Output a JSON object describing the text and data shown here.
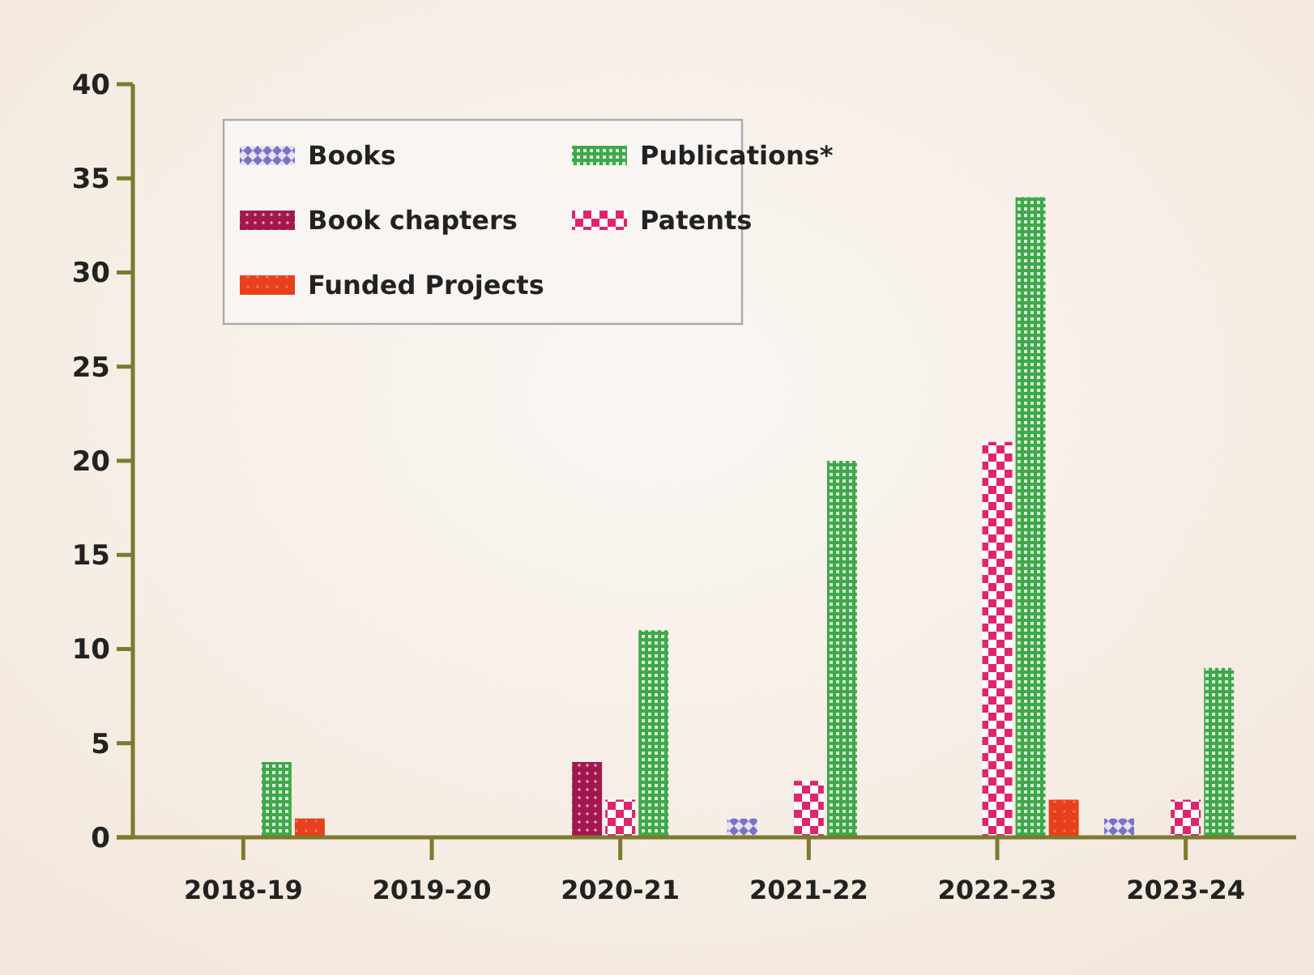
{
  "chart_data": {
    "type": "bar",
    "categories": [
      "2018-19",
      "2019-20",
      "2020-21",
      "2021-22",
      "2022-23",
      "2023-24"
    ],
    "series": [
      {
        "name": "Books",
        "color": "#7b72c4",
        "values": [
          0,
          0,
          0,
          1,
          0,
          1
        ]
      },
      {
        "name": "Book chapters",
        "color": "#a3174f",
        "values": [
          0,
          0,
          4,
          0,
          0,
          0
        ]
      },
      {
        "name": "Patents",
        "color": "#e0246e",
        "values": [
          0,
          0,
          2,
          3,
          21,
          2
        ]
      },
      {
        "name": "Publications*",
        "color": "#3fa84a",
        "values": [
          4,
          0,
          11,
          20,
          34,
          9
        ]
      },
      {
        "name": "Funded Projects",
        "color": "#e8401c",
        "values": [
          1,
          0,
          0,
          0,
          2,
          0
        ]
      }
    ],
    "ylim": [
      0,
      40
    ],
    "yticks": [
      0,
      5,
      10,
      15,
      20,
      25,
      30,
      35,
      40
    ],
    "grid": false,
    "legend": "top left"
  }
}
